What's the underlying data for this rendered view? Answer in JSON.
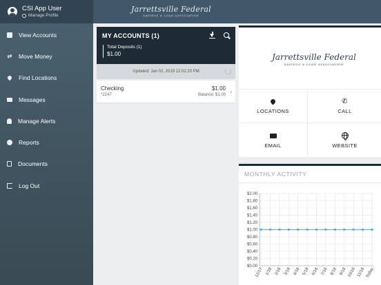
{
  "profile": {
    "name": "CSI App User",
    "link": "Manage Profile"
  },
  "nav": [
    {
      "label": "View Accounts",
      "icon": "accounts-icon"
    },
    {
      "label": "Move Money",
      "icon": "transfer-icon"
    },
    {
      "label": "Find Locations",
      "icon": "location-pin-icon"
    },
    {
      "label": "Messages",
      "icon": "message-icon"
    },
    {
      "label": "Manage Alerts",
      "icon": "bell-icon"
    },
    {
      "label": "Reports",
      "icon": "pie-chart-icon"
    },
    {
      "label": "Documents",
      "icon": "document-icon"
    },
    {
      "label": "Log Out",
      "icon": "logout-icon"
    }
  ],
  "brand": {
    "name": "Jarrettsville Federal",
    "tagline": "SAVINGS & LOAN ASSOCIATION"
  },
  "accounts": {
    "title": "MY ACCOUNTS (1)",
    "total_label": "Total Deposits (1)",
    "total_value": "$1.00",
    "updated": "Updated: Jan 02, 2019 12:02:20 PM",
    "rows": [
      {
        "name": "Checking",
        "number": "*2147",
        "amount": "$1.00",
        "balance": "Balance: $1.00"
      }
    ]
  },
  "tiles": {
    "locations": "LOCATIONS",
    "call": "CALL",
    "email": "EMAIL",
    "website": "WEBSITE"
  },
  "activity": {
    "title": "MONTHLY ACTIVITY"
  },
  "chart_data": {
    "type": "line",
    "title": "MONTHLY ACTIVITY",
    "categories": [
      "12/17",
      "1/18",
      "2/18",
      "3/18",
      "4/18",
      "5/18",
      "6/18",
      "7/18",
      "8/18",
      "9/18",
      "10/18",
      "11/18",
      "Today"
    ],
    "series": [
      {
        "values": [
          1,
          1,
          1,
          1,
          1,
          1,
          1,
          1,
          1,
          1,
          1,
          1,
          1
        ]
      }
    ],
    "yticks": [
      "$2.00",
      "$1.80",
      "$1.60",
      "$1.40",
      "$1.20",
      "$1.00",
      "$0.80",
      "$0.60",
      "$0.40",
      "$0.20",
      "$0.00"
    ],
    "ylim": [
      0,
      2
    ],
    "grid": true,
    "color": "#5bb6d9"
  }
}
